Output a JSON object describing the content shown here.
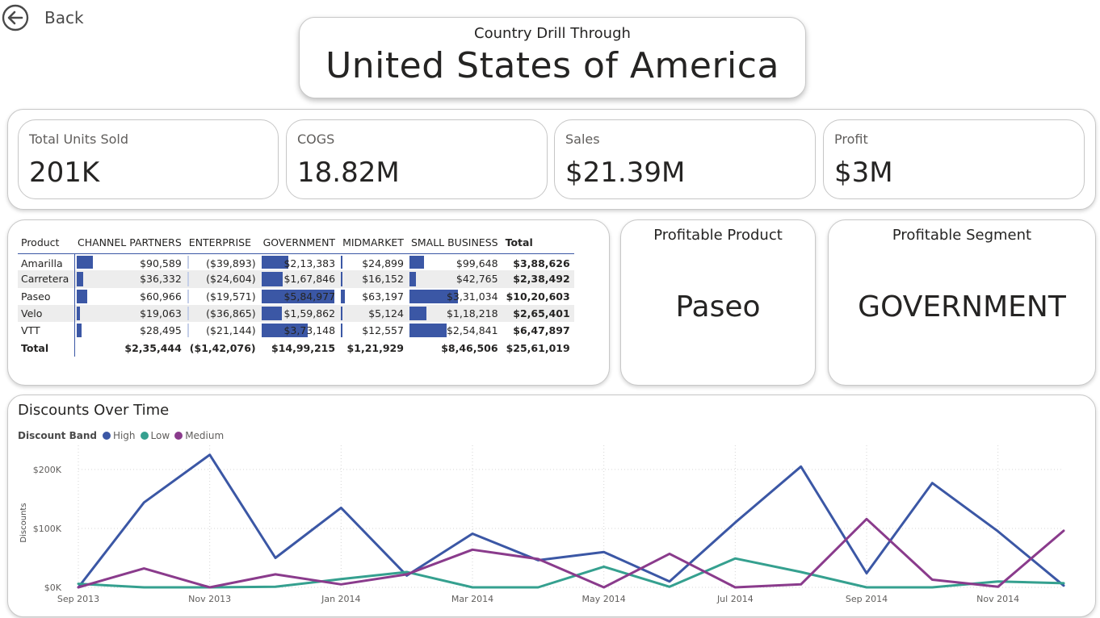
{
  "back": {
    "label": "Back"
  },
  "header": {
    "subtitle": "Country Drill Through",
    "title": "United States of America"
  },
  "kpis": [
    {
      "label": "Total Units Sold",
      "value": "201K"
    },
    {
      "label": "COGS",
      "value": "18.82M"
    },
    {
      "label": "Sales",
      "value": "$21.39M"
    },
    {
      "label": "Profit",
      "value": "$3M"
    }
  ],
  "matrix": {
    "columns": [
      "Product",
      "CHANNEL PARTNERS",
      "ENTERPRISE",
      "GOVERNMENT",
      "MIDMARKET",
      "SMALL BUSINESS",
      "Total"
    ],
    "rows": [
      {
        "product": "Amarilla",
        "cells": [
          "$90,589",
          "($39,893)",
          "$2,13,383",
          "$24,899",
          "$99,648"
        ],
        "total": "$3,88,626",
        "values": [
          90589,
          -39893,
          213383,
          24899,
          99648
        ]
      },
      {
        "product": "Carretera",
        "cells": [
          "$36,332",
          "($24,604)",
          "$1,67,846",
          "$16,152",
          "$42,765"
        ],
        "total": "$2,38,492",
        "values": [
          36332,
          -24604,
          167846,
          16152,
          42765
        ]
      },
      {
        "product": "Paseo",
        "cells": [
          "$60,966",
          "($19,571)",
          "$5,84,977",
          "$63,197",
          "$3,31,034"
        ],
        "total": "$10,20,603",
        "values": [
          60966,
          -19571,
          584977,
          63197,
          331034
        ]
      },
      {
        "product": "Velo",
        "cells": [
          "$19,063",
          "($36,865)",
          "$1,59,862",
          "$5,124",
          "$1,18,218"
        ],
        "total": "$2,65,401",
        "values": [
          19063,
          -36865,
          159862,
          5124,
          118218
        ]
      },
      {
        "product": "VTT",
        "cells": [
          "$28,495",
          "($21,144)",
          "$3,73,148",
          "$12,557",
          "$2,54,841"
        ],
        "total": "$6,47,897",
        "values": [
          28495,
          -21144,
          373148,
          12557,
          254841
        ]
      }
    ],
    "total_row": {
      "label": "Total",
      "cells": [
        "$2,35,444",
        "($1,42,076)",
        "$14,99,215",
        "$1,21,929",
        "$8,46,506"
      ],
      "total": "$25,61,019"
    },
    "bar_color": "#3b57a5"
  },
  "profitable_product": {
    "title": "Profitable Product",
    "value": "Paseo"
  },
  "profitable_segment": {
    "title": "Profitable Segment",
    "value": "GOVERNMENT"
  },
  "chart_data": {
    "type": "line",
    "title": "Discounts Over Time",
    "legend_title": "Discount Band",
    "ylabel": "Discounts",
    "xlabel": "",
    "ylim": [
      0,
      230000
    ],
    "yticks": [
      {
        "value": 0,
        "label": "$0K"
      },
      {
        "value": 100000,
        "label": "$100K"
      },
      {
        "value": 200000,
        "label": "$200K"
      }
    ],
    "x": [
      "Sep 2013",
      "Oct 2013",
      "Nov 2013",
      "Dec 2013",
      "Jan 2014",
      "Feb 2014",
      "Mar 2014",
      "Apr 2014",
      "May 2014",
      "Jun 2014",
      "Jul 2014",
      "Aug 2014",
      "Sep 2014",
      "Oct 2014",
      "Nov 2014",
      "Dec 2014"
    ],
    "xtick_labels": [
      {
        "index": 0,
        "label": "Sep 2013"
      },
      {
        "index": 2,
        "label": "Nov 2013"
      },
      {
        "index": 4,
        "label": "Jan 2014"
      },
      {
        "index": 6,
        "label": "Mar 2014"
      },
      {
        "index": 8,
        "label": "May 2014"
      },
      {
        "index": 10,
        "label": "Jul 2014"
      },
      {
        "index": 12,
        "label": "Sep 2014"
      },
      {
        "index": 14,
        "label": "Nov 2014"
      }
    ],
    "series": [
      {
        "name": "High",
        "color": "#3b57a5",
        "values": [
          0,
          144000,
          225000,
          50000,
          135000,
          20000,
          91000,
          46000,
          60000,
          10000,
          110000,
          205000,
          24000,
          177000,
          95000,
          3000
        ]
      },
      {
        "name": "Low",
        "color": "#35a08f",
        "values": [
          6000,
          0,
          0,
          1000,
          14000,
          26000,
          0,
          0,
          35000,
          1000,
          49000,
          26000,
          0,
          0,
          10000,
          7000
        ]
      },
      {
        "name": "Medium",
        "color": "#8a3b8c",
        "values": [
          0,
          32000,
          0,
          22000,
          5000,
          22000,
          64000,
          48000,
          0,
          57000,
          0,
          5000,
          116000,
          13000,
          1000,
          96000
        ]
      }
    ],
    "legend_position": "top-left",
    "grid": true
  }
}
